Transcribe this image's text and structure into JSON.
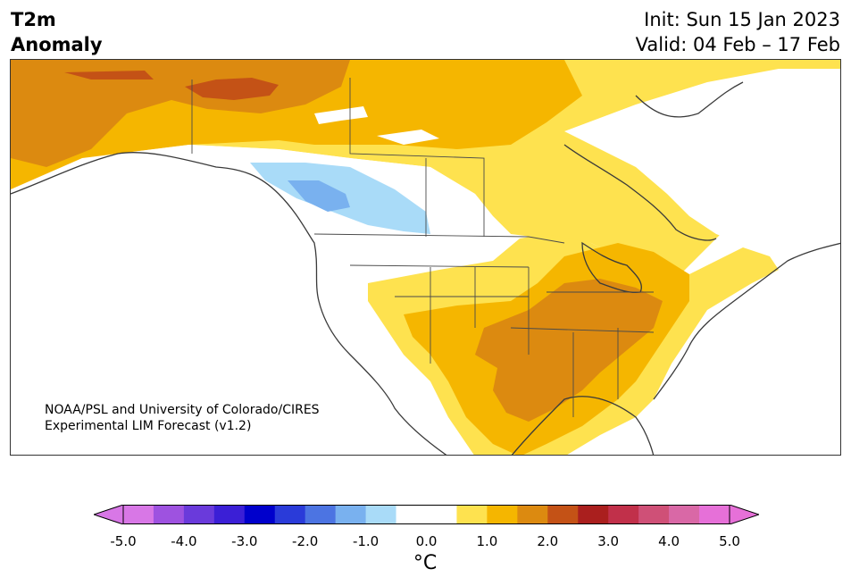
{
  "title": {
    "left_line1": "T2m",
    "left_line2": "Anomaly",
    "init": "Init: Sun 15 Jan 2023",
    "valid": "Valid: 04 Feb – 17 Feb"
  },
  "credit": {
    "line1": "NOAA/PSL and University of Colorado/CIRES",
    "line2": "Experimental LIM Forecast (v1.2)"
  },
  "colorbar": {
    "unit": "°C",
    "ticks": [
      "-5.0",
      "-4.0",
      "-3.0",
      "-2.0",
      "-1.0",
      "0.0",
      "1.0",
      "2.0",
      "3.0",
      "4.0",
      "5.0"
    ],
    "colors": [
      "#d877e6",
      "#9e52e0",
      "#6a3adb",
      "#3b1fd6",
      "#0000cc",
      "#2a3bd9",
      "#4c74e2",
      "#79b1ef",
      "#a9dbf8",
      "#ffffff",
      "#ffffff",
      "#fee24f",
      "#f5b600",
      "#dc8a10",
      "#c45216",
      "#aa1f1e",
      "#c1304a",
      "#cf5077",
      "#d968a6",
      "#e670d8"
    ],
    "under_color": "#d877e6",
    "over_color": "#e670d8"
  },
  "map": {
    "legend_levels": {
      "neutral": "#ffffff",
      "warm1": "#fee24f",
      "warm2": "#f5b600",
      "warm3": "#dc8a10",
      "warm4": "#c45216",
      "cool1": "#a9dbf8",
      "cool2": "#79b1ef"
    }
  }
}
